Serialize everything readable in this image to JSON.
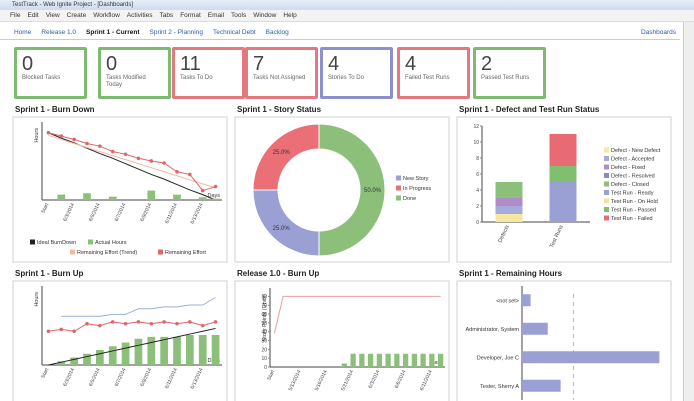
{
  "window": {
    "title": "TestTrack - Web Ignite Project - [Dashboards]"
  },
  "menu": [
    "File",
    "Edit",
    "View",
    "Create",
    "Workflow",
    "Activities",
    "Tabs",
    "Format",
    "Email",
    "Tools",
    "Window",
    "Help"
  ],
  "tabs": {
    "items": [
      "Home",
      "Release 1.0",
      "Sprint 1 - Current",
      "Sprint 2 - Planning",
      "Technical Debt",
      "Backlog"
    ],
    "active": 2,
    "right": "Dashboards"
  },
  "tiles": [
    {
      "value": 0,
      "label": "Blocked Tasks",
      "color": "#7dbb72"
    },
    {
      "value": 0,
      "label": "Tasks Modified Today",
      "color": "#7dbb72"
    },
    {
      "value": 11,
      "label": "Tasks To Do",
      "color": "#e3787f"
    },
    {
      "value": 7,
      "label": "Tasks Not Assigned",
      "color": "#e3787f"
    },
    {
      "value": 4,
      "label": "Stories To Do",
      "color": "#8d90cf"
    },
    {
      "value": 4,
      "label": "Failed Test Runs",
      "color": "#e3787f"
    },
    {
      "value": 2,
      "label": "Passed Test Runs",
      "color": "#7dbb72"
    }
  ],
  "chart_data": [
    {
      "type": "combo",
      "title": "Sprint 1 - Burn Down",
      "ylabel": "Hours",
      "xlabel": "Days",
      "legend": "bottom",
      "ylim": [
        0,
        110
      ],
      "categories": [
        "Start",
        null,
        "6/3/2014",
        null,
        "6/5/2014",
        null,
        "6/7/2014",
        null,
        "6/9/2014",
        null,
        "6/11/2014",
        null,
        "6/13/2014",
        null
      ],
      "series": [
        {
          "name": "Ideal BurnDown",
          "color": "#222222",
          "kind": "line",
          "values": [
            100,
            92,
            85,
            77,
            69,
            62,
            54,
            46,
            38,
            31,
            23,
            15,
            8,
            0
          ]
        },
        {
          "name": "Actual Hours",
          "color": "#8cc07a",
          "kind": "bar",
          "values": [
            0,
            8,
            0,
            10,
            0,
            5,
            0,
            0,
            14,
            0,
            8,
            0,
            4,
            2
          ]
        },
        {
          "name": "Remaining Effort (Trend)",
          "color": "#f4b8a0",
          "kind": "line",
          "values": [
            96,
            90,
            84,
            78,
            72,
            66,
            60,
            54,
            48,
            42,
            36,
            30,
            24,
            18
          ]
        },
        {
          "name": "Remaining Effort",
          "color": "#e0646a",
          "kind": "line",
          "markers": true,
          "values": [
            100,
            95,
            90,
            84,
            80,
            72,
            68,
            62,
            58,
            55,
            42,
            38,
            14,
            20
          ]
        }
      ]
    },
    {
      "type": "donut",
      "title": "Sprint 1 - Story Status",
      "legend": "right",
      "categories": [
        "New Story",
        "In Progress",
        "Done"
      ],
      "values": [
        25,
        25,
        50
      ],
      "value_labels": [
        "25.0%",
        "25.0%",
        "50.0%"
      ],
      "colors": [
        "#9ba0d4",
        "#ea6f76",
        "#8cc07a"
      ]
    },
    {
      "type": "stacked",
      "title": "Sprint 1 - Defect and Test Run Status",
      "legend": "right",
      "ylim": [
        0,
        12
      ],
      "yticks": [
        0,
        2,
        4,
        6,
        8,
        10,
        12
      ],
      "categories": [
        "Defects",
        "Test Runs"
      ],
      "series": [
        {
          "name": "Defect - New Defect",
          "color": "#f5e6a0",
          "values": [
            1,
            0
          ]
        },
        {
          "name": "Defect - Accepted",
          "color": "#a7abdc",
          "values": [
            1,
            0
          ]
        },
        {
          "name": "Defect - Fixed",
          "color": "#b08cc8",
          "values": [
            1,
            0
          ]
        },
        {
          "name": "Defect - Resolved",
          "color": "#8c8cbc",
          "values": [
            0,
            0
          ]
        },
        {
          "name": "Defect - Closed",
          "color": "#8cc07a",
          "values": [
            2,
            0
          ]
        },
        {
          "name": "Test Run - Ready",
          "color": "#9ba0d4",
          "values": [
            0,
            5
          ]
        },
        {
          "name": "Test Run - On Hold",
          "color": "#f2e49a",
          "values": [
            0,
            0
          ]
        },
        {
          "name": "Test Run - Passed",
          "color": "#7fbf6f",
          "values": [
            0,
            2
          ]
        },
        {
          "name": "Test Run - Failed",
          "color": "#e86a73",
          "values": [
            0,
            4
          ]
        }
      ]
    },
    {
      "type": "combo",
      "title": "Sprint 1 - Burn Up",
      "ylabel": "Hours",
      "xlabel": "Days",
      "ylim": [
        0,
        40
      ],
      "categories": [
        "Start",
        null,
        "6/3/2014",
        null,
        "6/5/2014",
        null,
        "6/7/2014",
        null,
        "6/9/2014",
        null,
        "6/11/2014",
        null,
        "6/13/2014",
        null
      ],
      "series": [
        {
          "color": "#8cc07a",
          "kind": "bar",
          "values": [
            0,
            2,
            4,
            6,
            8,
            10,
            12,
            14,
            15,
            15,
            15,
            16,
            16,
            16
          ]
        },
        {
          "color": "#9ab0d8",
          "kind": "line",
          "values": [
            null,
            26,
            26,
            26,
            26,
            27,
            27,
            30,
            30,
            31,
            31,
            32,
            32,
            36
          ]
        },
        {
          "color": "#222222",
          "kind": "line",
          "values": [
            0,
            1.5,
            3,
            4.5,
            6,
            7.5,
            9,
            10.5,
            12,
            13.5,
            15,
            16.5,
            18,
            19.5
          ]
        },
        {
          "color": "#e0646a",
          "kind": "line",
          "markers": true,
          "values": [
            18,
            19,
            18,
            22,
            21,
            23,
            22,
            23,
            22,
            23,
            22,
            23,
            21,
            23
          ]
        }
      ]
    },
    {
      "type": "combo",
      "title": "Release 1.0 - Burn Up",
      "ylabel": "Story Points (Units)",
      "xlabel": "Days",
      "ylim": [
        0,
        85
      ],
      "yticks": [
        0,
        10,
        20,
        30,
        40,
        50,
        60,
        70,
        80
      ],
      "categories": [
        "Start",
        null,
        null,
        "5/13/2014",
        null,
        null,
        "5/16/2014",
        null,
        null,
        "5/21/2014",
        null,
        null,
        "6/3/2014",
        null,
        null,
        "6/6/2014",
        null,
        null,
        "6/11/2014",
        null
      ],
      "series": [
        {
          "color": "#8cc07a",
          "kind": "bar",
          "values": [
            0,
            0,
            0,
            0,
            0,
            0,
            0,
            0,
            4,
            15,
            15,
            15,
            15,
            15,
            15,
            15,
            15,
            15,
            15,
            15
          ]
        },
        {
          "color": "#e8a0a0",
          "kind": "line",
          "values": [
            38,
            80,
            80,
            80,
            80,
            80,
            80,
            80,
            80,
            80,
            80,
            80,
            80,
            80,
            80,
            80,
            80,
            80,
            80,
            80
          ]
        }
      ]
    },
    {
      "type": "hbar",
      "title": "Sprint 1 - Remaining Hours",
      "xlim": [
        0,
        34
      ],
      "reference": 12,
      "color": "#9ba0d4",
      "categories": [
        "<not set>",
        "Administrator, System",
        "Developer, Joe C",
        "Tester, Sherry A"
      ],
      "values": [
        2,
        6,
        32,
        9
      ]
    }
  ]
}
